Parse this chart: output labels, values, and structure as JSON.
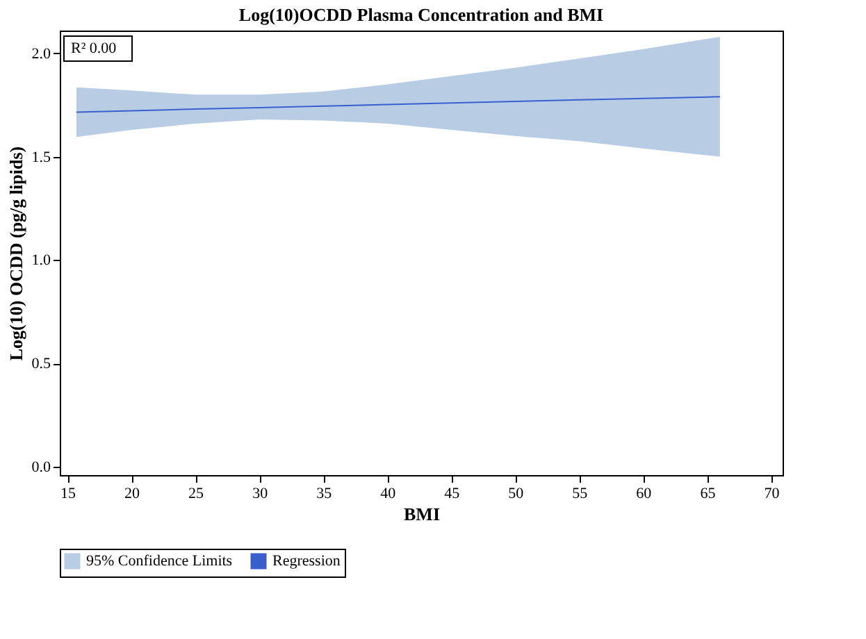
{
  "chart_data": {
    "type": "line",
    "title": "Log(10)OCDD Plasma Concentration and BMI",
    "xlabel": "BMI",
    "ylabel": "Log(10) OCDD (pg/g lipids)",
    "x": [
      15.7,
      20,
      25,
      30,
      35,
      40,
      45,
      50,
      55,
      60,
      66
    ],
    "series": [
      {
        "name": "95% Confidence Limits",
        "type": "area",
        "color": "#b8cce4",
        "values": [
          null,
          null,
          null,
          null,
          null,
          null,
          null,
          null,
          null,
          null,
          null
        ],
        "lower": [
          1.595,
          1.63,
          1.66,
          1.68,
          1.675,
          1.66,
          1.63,
          1.6,
          1.575,
          1.54,
          1.5
        ],
        "upper": [
          1.835,
          1.82,
          1.8,
          1.8,
          1.815,
          1.85,
          1.89,
          1.93,
          1.975,
          2.02,
          2.08
        ]
      },
      {
        "name": "Regression",
        "color": "#3a5fcd",
        "values": [
          1.715,
          1.722,
          1.73,
          1.737,
          1.745,
          1.752,
          1.76,
          1.767,
          1.775,
          1.782,
          1.79
        ]
      }
    ],
    "xlim": [
      14.4,
      70.9
    ],
    "xticks": [
      15,
      20,
      25,
      30,
      35,
      40,
      45,
      50,
      55,
      60,
      65,
      70
    ],
    "ylim": [
      -0.04,
      2.11
    ],
    "yticks": [
      {
        "value": 0,
        "label": "0.0"
      },
      {
        "value": 0.5,
        "label": "0.5"
      },
      {
        "value": 1,
        "label": "1.0"
      },
      {
        "value": 1.5,
        "label": "1.5"
      },
      {
        "value": 2,
        "label": "2.0"
      }
    ],
    "annotations": [
      "R² 0.00"
    ],
    "grid": false,
    "legend": "bottom"
  }
}
